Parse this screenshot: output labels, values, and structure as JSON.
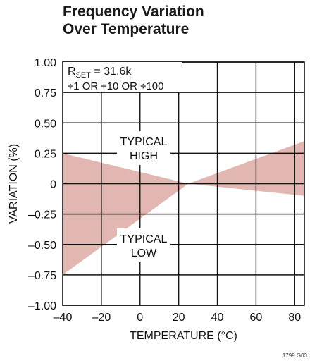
{
  "title_line1": "Frequency Variation",
  "title_line2": "Over Temperature",
  "figure_id": "1799 G03",
  "chart_data": {
    "type": "area",
    "title": "Frequency Variation Over Temperature",
    "xlabel": "TEMPERATURE (°C)",
    "ylabel": "VARIATION (%)",
    "xlim": [
      -40,
      85
    ],
    "ylim": [
      -1.0,
      1.0
    ],
    "x_ticks": [
      -40,
      -20,
      0,
      20,
      40,
      60,
      80
    ],
    "x_tick_labels": [
      "–40",
      "–20",
      "0",
      "20",
      "40",
      "60",
      "80"
    ],
    "y_ticks": [
      1.0,
      0.75,
      0.5,
      0.25,
      0,
      -0.25,
      -0.5,
      -0.75,
      -1.0
    ],
    "y_tick_labels": [
      "1.00",
      "0.75",
      "0.50",
      "0.25",
      "0",
      "–0.25",
      "–0.50",
      "–0.75",
      "–1.00"
    ],
    "x_gridlines": [
      -20,
      0,
      20,
      40,
      60,
      80
    ],
    "grid": true,
    "fill_color": "#e3b7b1",
    "series": [
      {
        "name": "TYPICAL HIGH",
        "x": [
          -40,
          25,
          85
        ],
        "values": [
          0.25,
          0.0,
          0.35
        ]
      },
      {
        "name": "TYPICAL LOW",
        "x": [
          -40,
          25,
          85
        ],
        "values": [
          -0.75,
          0.0,
          -0.1
        ]
      }
    ],
    "annotations": {
      "rset_main": "R",
      "rset_sub": "SET",
      "rset_value": " = 31.6k",
      "divider": "÷1 OR ÷10 OR ÷100",
      "high_line1": "TYPICAL",
      "high_line2": "HIGH",
      "low_line1": "TYPICAL",
      "low_line2": "LOW"
    }
  }
}
